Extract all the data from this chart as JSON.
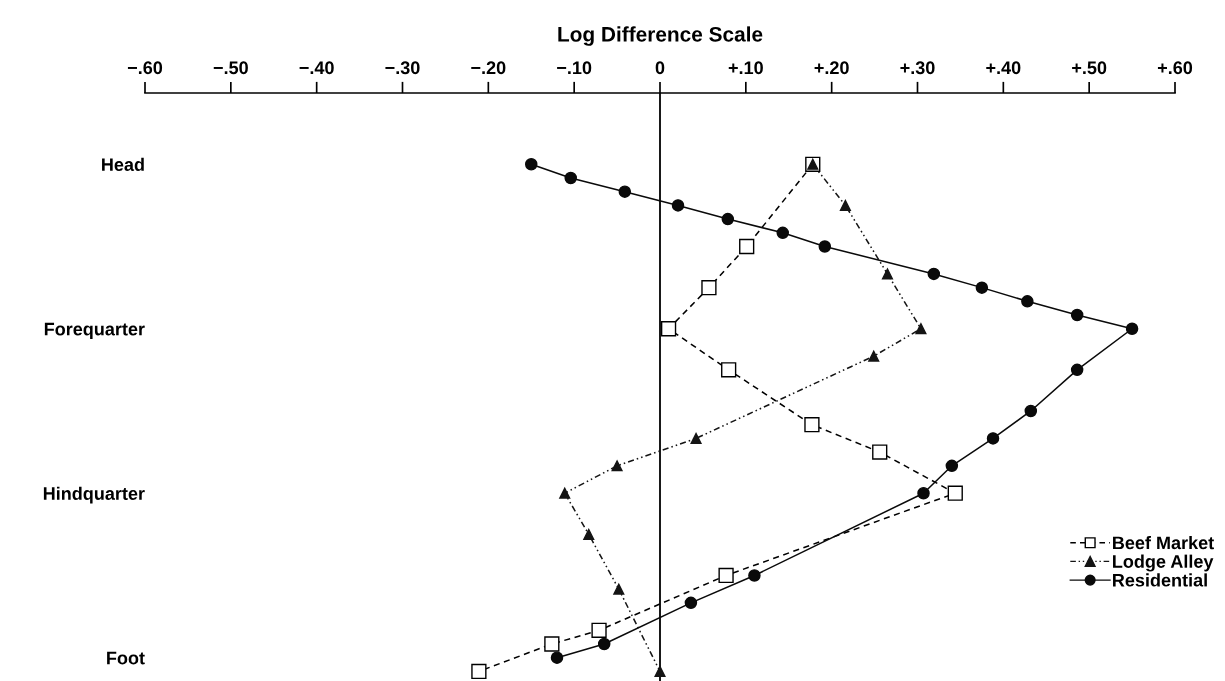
{
  "chart_data": {
    "type": "line",
    "orientation": "horizontal",
    "xlabel": "Log Difference Scale",
    "categories": [
      "Head",
      null,
      null,
      null,
      null,
      null,
      null,
      null,
      null,
      null,
      null,
      null,
      "Forequarter",
      null,
      null,
      null,
      null,
      null,
      null,
      null,
      null,
      null,
      null,
      null,
      "Hindquarter",
      null,
      null,
      null,
      null,
      null,
      null,
      null,
      null,
      null,
      null,
      null,
      "Foot",
      null
    ],
    "xlim": [
      -0.6,
      0.6
    ],
    "xticks": [
      {
        "value": -0.6,
        "label": "−.60"
      },
      {
        "value": -0.5,
        "label": "−.50"
      },
      {
        "value": -0.4,
        "label": "−.40"
      },
      {
        "value": -0.3,
        "label": "−.30"
      },
      {
        "value": -0.2,
        "label": "−.20"
      },
      {
        "value": -0.1,
        "label": "−.10"
      },
      0,
      {
        "value": 0.1,
        "label": "+.10"
      },
      {
        "value": 0.2,
        "label": "+.20"
      },
      {
        "value": 0.3,
        "label": "+.30"
      },
      {
        "value": 0.4,
        "label": "+.40"
      },
      {
        "value": 0.5,
        "label": "+.50"
      },
      {
        "value": 0.6,
        "label": "+.60"
      }
    ],
    "ref_lines": [
      {
        "axis": "x",
        "value": 0,
        "color": "#000000",
        "line_style": "solid"
      }
    ],
    "legend": "bottom right",
    "grid": false,
    "series": [
      {
        "name": "Beef Market",
        "color": "#000000",
        "marker": "square",
        "line_style": "dashed",
        "values": [
          0.178,
          null,
          null,
          null,
          null,
          null,
          0.101,
          null,
          null,
          0.057,
          null,
          null,
          0.01,
          null,
          null,
          0.08,
          null,
          null,
          null,
          0.177,
          null,
          0.256,
          null,
          null,
          0.344,
          null,
          null,
          null,
          null,
          null,
          0.077,
          null,
          null,
          null,
          -0.071,
          -0.126,
          null,
          -0.211
        ]
      },
      {
        "name": "Lodge Alley",
        "color": "#141414",
        "marker": "triangle",
        "line_style": "dotted",
        "values": [
          0.178,
          null,
          null,
          0.216,
          null,
          null,
          null,
          null,
          0.265,
          null,
          null,
          null,
          0.304,
          null,
          0.249,
          null,
          null,
          null,
          null,
          null,
          0.042,
          null,
          -0.05,
          null,
          -0.111,
          null,
          null,
          -0.083,
          null,
          null,
          null,
          -0.048,
          null,
          null,
          null,
          null,
          null,
          0
        ]
      },
      {
        "name": "Residential",
        "color": "#0a0a0a",
        "marker": "circle",
        "line_style": "solid",
        "values": [
          -0.15,
          -0.104,
          -0.041,
          0.021,
          0.079,
          0.143,
          0.192,
          null,
          0.319,
          0.375,
          0.428,
          0.486,
          0.55,
          null,
          null,
          0.486,
          null,
          null,
          0.432,
          null,
          0.388,
          null,
          0.34,
          null,
          0.307,
          null,
          null,
          null,
          null,
          null,
          0.11,
          null,
          0.036,
          null,
          null,
          -0.065,
          -0.12,
          null
        ]
      }
    ]
  }
}
